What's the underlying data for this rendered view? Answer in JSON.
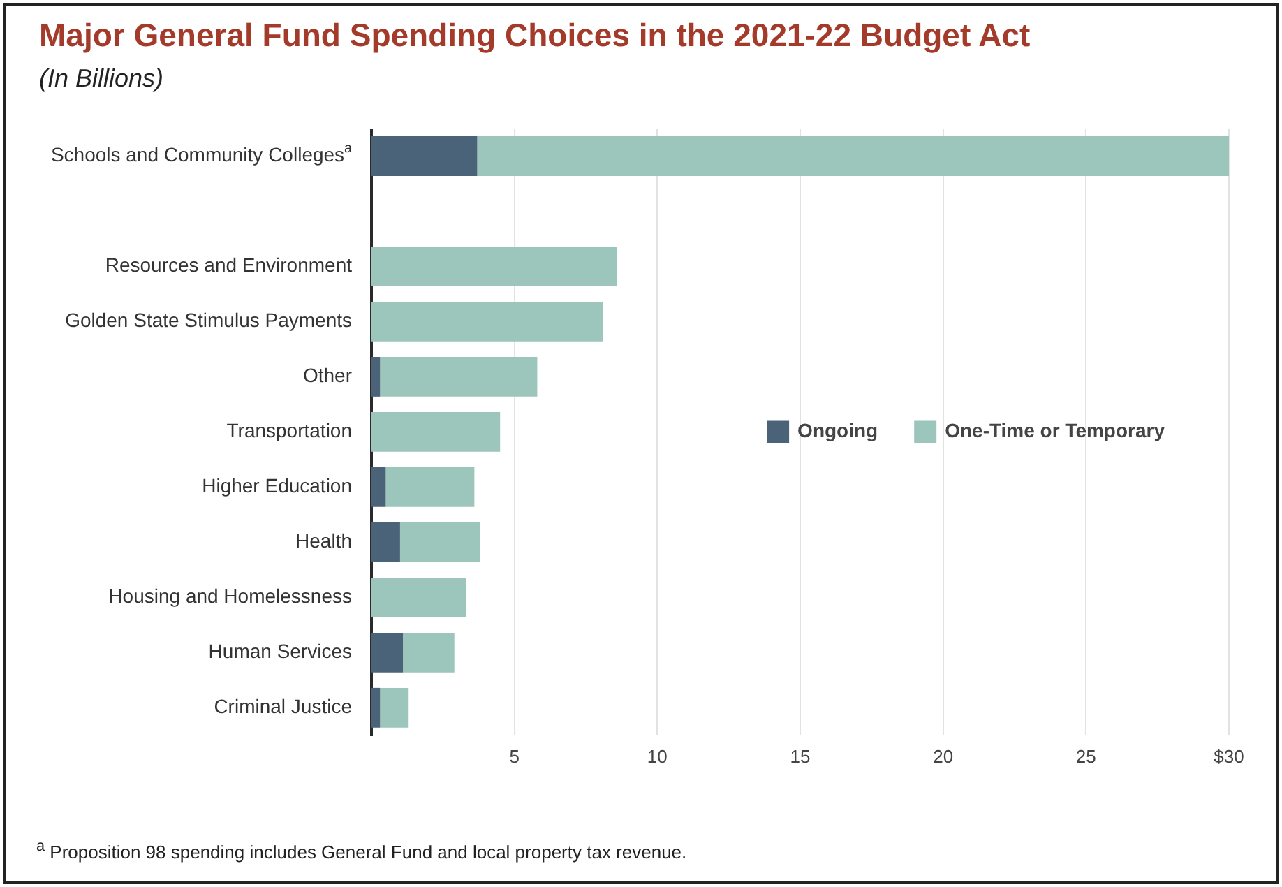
{
  "chart_data": {
    "type": "bar",
    "orientation": "horizontal",
    "stacked": true,
    "title": "Major General Fund Spending Choices in the 2021-22 Budget Act",
    "subtitle": "(In Billions)",
    "categories": [
      "Schools and Community Colleges$^{a}$",
      null,
      "Resources and Environment",
      "Golden State Stimulus Payments",
      "Other",
      "Transportation",
      "Higher Education",
      "Health",
      "Housing and Homelessness",
      "Human Services",
      "Criminal Justice"
    ],
    "series": [
      {
        "name": "Ongoing",
        "color": "#4a6378",
        "values": [
          3.7,
          null,
          0,
          0,
          0.3,
          0,
          0.5,
          1.0,
          0,
          1.1,
          0.3
        ]
      },
      {
        "name": "One-Time or Temporary",
        "color": "#9cc5bb",
        "values": [
          26.3,
          null,
          8.6,
          8.1,
          5.5,
          4.5,
          3.1,
          2.8,
          3.3,
          1.8,
          1.0
        ]
      }
    ],
    "xlim": [
      0,
      30
    ],
    "xticks": [
      5,
      10,
      15,
      20,
      25,
      {
        "value": 30,
        "label": "$30"
      }
    ],
    "grid": "x",
    "legend": "right",
    "annotations": [
      "$^{a}$ Proposition 98 spending includes General Fund and local property tax revenue."
    ]
  }
}
